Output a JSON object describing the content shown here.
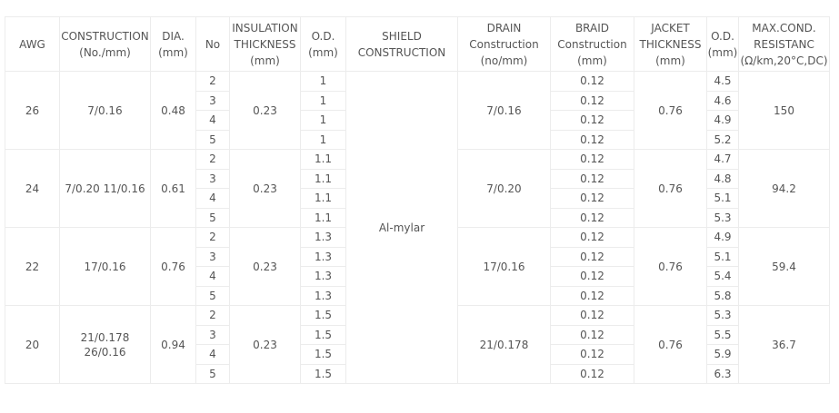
{
  "table": {
    "headers": [
      [
        "AWG"
      ],
      [
        "CONSTRUCTION",
        "(No./mm)"
      ],
      [
        "DIA.",
        "(mm)"
      ],
      [
        "No"
      ],
      [
        "INSULATION",
        "THICKNESS",
        "(mm)"
      ],
      [
        "O.D.",
        "(mm)"
      ],
      [
        "SHIELD",
        "CONSTRUCTION"
      ],
      [
        "DRAIN",
        "Construction",
        "(no/mm)"
      ],
      [
        "BRAID",
        "Construction",
        "(mm)"
      ],
      [
        "JACKET",
        "THICKNESS",
        "(mm)"
      ],
      [
        "O.D.",
        "(mm)"
      ],
      [
        "MAX.COND.",
        "RESISTANC",
        "(Ω/km,20°C,DC)"
      ]
    ],
    "shield": "Al-mylar",
    "groups": [
      {
        "awg": 26,
        "construction": [
          "7/0.16"
        ],
        "dia": 0.48,
        "insulation": 0.23,
        "drain": [
          "7/0.16"
        ],
        "jacket": 0.76,
        "resistance": 150,
        "rows": [
          {
            "no": 2,
            "od": 1,
            "braid": 0.12,
            "od2": 4.5
          },
          {
            "no": 3,
            "od": 1,
            "braid": 0.12,
            "od2": 4.6
          },
          {
            "no": 4,
            "od": 1,
            "braid": 0.12,
            "od2": 4.9
          },
          {
            "no": 5,
            "od": 1,
            "braid": 0.12,
            "od2": 5.2
          }
        ]
      },
      {
        "awg": 24,
        "construction": [
          "7/0.20 11/0.16"
        ],
        "dia": 0.61,
        "insulation": 0.23,
        "drain": [
          "7/0.20"
        ],
        "jacket": 0.76,
        "resistance": 94.2,
        "rows": [
          {
            "no": 2,
            "od": 1.1,
            "braid": 0.12,
            "od2": 4.7
          },
          {
            "no": 3,
            "od": 1.1,
            "braid": 0.12,
            "od2": 4.8
          },
          {
            "no": 4,
            "od": 1.1,
            "braid": 0.12,
            "od2": 5.1
          },
          {
            "no": 5,
            "od": 1.1,
            "braid": 0.12,
            "od2": 5.3
          }
        ]
      },
      {
        "awg": 22,
        "construction": [
          "17/0.16"
        ],
        "dia": 0.76,
        "insulation": 0.23,
        "drain": [
          "17/0.16"
        ],
        "jacket": 0.76,
        "resistance": 59.4,
        "rows": [
          {
            "no": 2,
            "od": 1.3,
            "braid": 0.12,
            "od2": 4.9
          },
          {
            "no": 3,
            "od": 1.3,
            "braid": 0.12,
            "od2": 5.1
          },
          {
            "no": 4,
            "od": 1.3,
            "braid": 0.12,
            "od2": 5.4
          },
          {
            "no": 5,
            "od": 1.3,
            "braid": 0.12,
            "od2": 5.8
          }
        ]
      },
      {
        "awg": 20,
        "construction": [
          "21/0.178",
          "26/0.16"
        ],
        "dia": 0.94,
        "insulation": 0.23,
        "drain": [
          "21/0.178"
        ],
        "jacket": 0.76,
        "resistance": 36.7,
        "rows": [
          {
            "no": 2,
            "od": 1.5,
            "braid": 0.12,
            "od2": 5.3
          },
          {
            "no": 3,
            "od": 1.5,
            "braid": 0.12,
            "od2": 5.5
          },
          {
            "no": 4,
            "od": 1.5,
            "braid": 0.12,
            "od2": 5.9
          },
          {
            "no": 5,
            "od": 1.5,
            "braid": 0.12,
            "od2": 6.3
          }
        ]
      }
    ]
  }
}
